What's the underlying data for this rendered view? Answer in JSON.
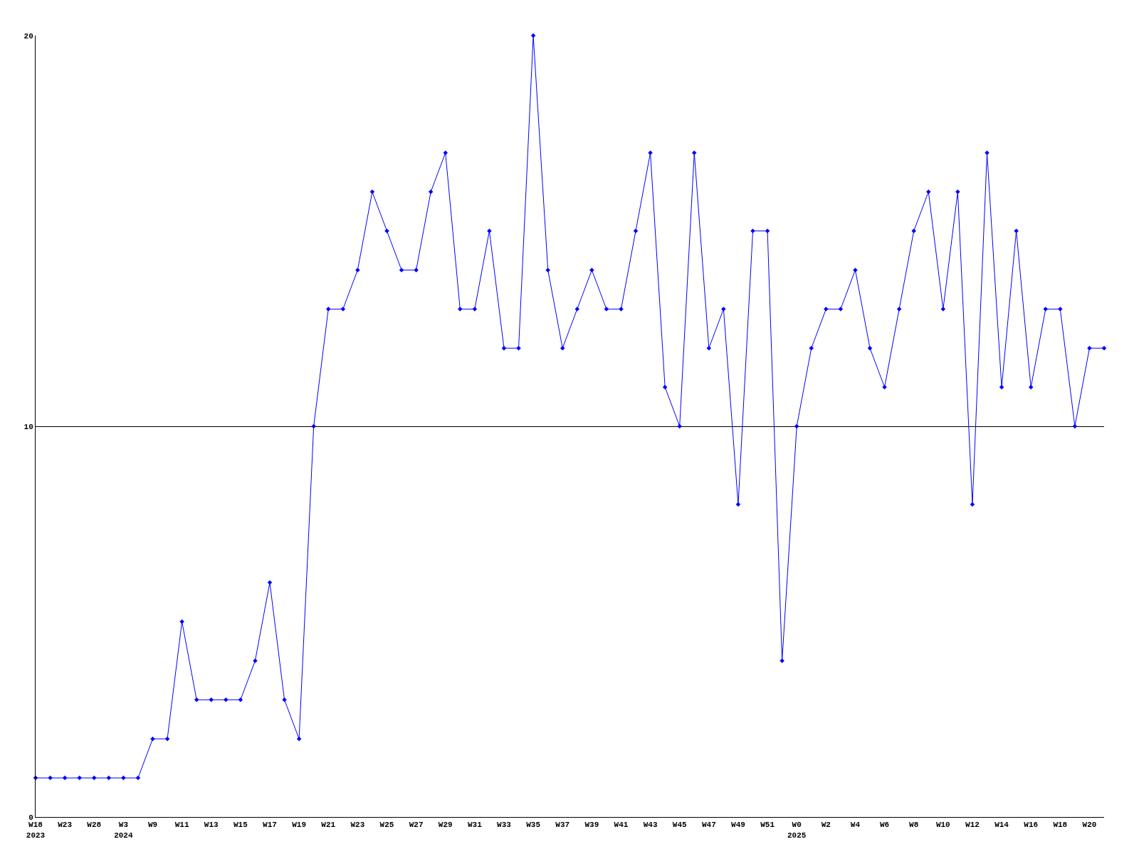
{
  "chart_data": {
    "type": "line",
    "categories": [
      "W18\n2023",
      null,
      "W23",
      null,
      "W28",
      null,
      "W3\n2024",
      null,
      "W9",
      null,
      "W11",
      null,
      "W13",
      null,
      "W15",
      null,
      "W17",
      null,
      "W19",
      null,
      "W21",
      null,
      "W23",
      null,
      "W25",
      null,
      "W27",
      null,
      "W29",
      null,
      "W31",
      null,
      "W33",
      null,
      "W35",
      null,
      "W37",
      null,
      "W39",
      null,
      "W41",
      null,
      "W43",
      null,
      "W45",
      null,
      "W47",
      null,
      "W49",
      null,
      "W51",
      null,
      "W0\n2025",
      null,
      "W2",
      null,
      "W4",
      null,
      "W6",
      null,
      "W8",
      null,
      "W10",
      null,
      "W12",
      null,
      "W14",
      null,
      "W16",
      null,
      "W18",
      null,
      "W20",
      null
    ],
    "series": [
      {
        "color": "#0000ff",
        "values": [
          1,
          1,
          1,
          1,
          1,
          1,
          1,
          1,
          2,
          2,
          5,
          3,
          3,
          3,
          3,
          4,
          6,
          3,
          2,
          10,
          13,
          13,
          14,
          16,
          15,
          14,
          14,
          16,
          17,
          13,
          13,
          15,
          12,
          12,
          20,
          14,
          12,
          13,
          14,
          13,
          13,
          15,
          17,
          11,
          10,
          17,
          12,
          13,
          8,
          15,
          15,
          4,
          10,
          12,
          13,
          13,
          14,
          12,
          11,
          13,
          15,
          16,
          13,
          16,
          8,
          17,
          11,
          15,
          11,
          13,
          13,
          10,
          12,
          12
        ]
      }
    ],
    "ylim": [
      0,
      20
    ],
    "yticks": [
      0,
      10,
      20
    ],
    "grid": "y",
    "marker": "diamond",
    "line_style": "solid"
  }
}
